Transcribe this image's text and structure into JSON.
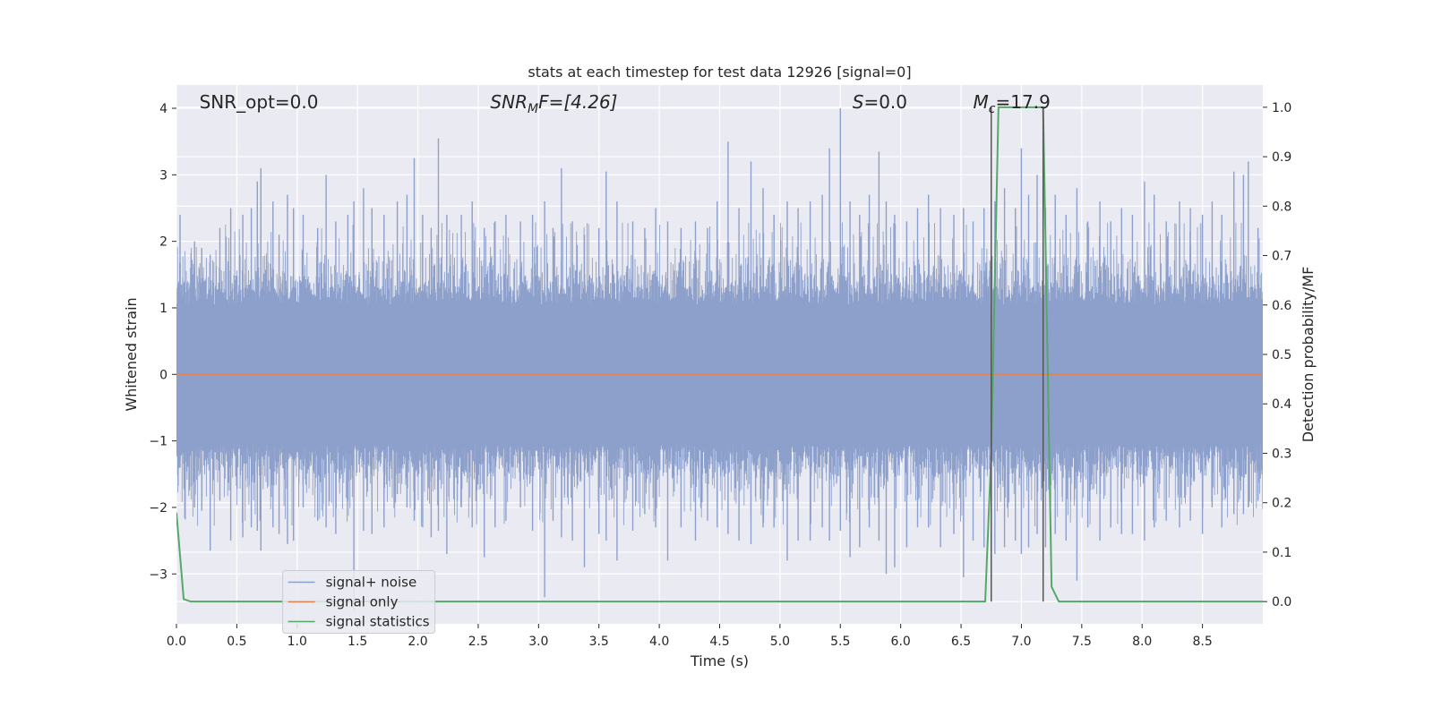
{
  "chart_data": {
    "type": "line",
    "title": "stats at each timestep for test data 12926 [signal=0]",
    "xlabel": "Time (s)",
    "ylabel_left": "Whitened strain",
    "ylabel_right": "Detection probability/MF",
    "xlim": [
      0.0,
      9.0
    ],
    "ylim_left": [
      -3.75,
      4.35
    ],
    "ylim_right": [
      -0.045,
      1.045
    ],
    "xticks": [
      0.0,
      0.5,
      1.0,
      1.5,
      2.0,
      2.5,
      3.0,
      3.5,
      4.0,
      4.5,
      5.0,
      5.5,
      6.0,
      6.5,
      7.0,
      7.5,
      8.0,
      8.5
    ],
    "xtick_labels": [
      "0.0",
      "0.5",
      "1.0",
      "1.5",
      "2.0",
      "2.5",
      "3.0",
      "3.5",
      "4.0",
      "4.5",
      "5.0",
      "5.5",
      "6.0",
      "6.5",
      "7.0",
      "7.5",
      "8.0",
      "8.5"
    ],
    "yticks_left": [
      -3,
      -2,
      -1,
      0,
      1,
      2,
      3,
      4
    ],
    "ytick_labels_left": [
      "−3",
      "−2",
      "−1",
      "0",
      "1",
      "2",
      "3",
      "4"
    ],
    "yticks_right": [
      0.0,
      0.1,
      0.2,
      0.3,
      0.4,
      0.5,
      0.6,
      0.7,
      0.8,
      0.9,
      1.0
    ],
    "ytick_labels_right": [
      "0.0",
      "0.1",
      "0.2",
      "0.3",
      "0.4",
      "0.5",
      "0.6",
      "0.7",
      "0.8",
      "0.9",
      "1.0"
    ],
    "grid": true,
    "legend_position": "lower-left",
    "annotations": {
      "snr_opt": "SNR_opt=0.0",
      "snr_mf_main": "SNR",
      "snr_mf_sub": "M",
      "snr_mf_rest": "F=[4.26]",
      "s_main": "S",
      "s_rest": "=0.0",
      "mc_main": "M",
      "mc_sub": "c",
      "mc_rest": "=17.9"
    },
    "series": [
      {
        "name": "signal+ noise",
        "axis": "left",
        "color": "#8da0cb",
        "envelope_peaks": [
          [
            0.03,
            2.4,
            -1.4
          ],
          [
            0.15,
            2.0,
            -2.0
          ],
          [
            0.21,
            1.9,
            -2.05
          ],
          [
            0.28,
            1.8,
            -2.65
          ],
          [
            0.36,
            2.2,
            -1.9
          ],
          [
            0.45,
            2.5,
            -2.5
          ],
          [
            0.55,
            2.4,
            -2.45
          ],
          [
            0.62,
            2.5,
            -2.3
          ],
          [
            0.67,
            2.9,
            -2.35
          ],
          [
            0.7,
            3.1,
            -2.65
          ],
          [
            0.8,
            2.6,
            -2.3
          ],
          [
            0.85,
            2.1,
            -2.4
          ],
          [
            0.92,
            2.7,
            -2.55
          ],
          [
            0.97,
            2.5,
            -2.5
          ],
          [
            1.05,
            2.4,
            -2.0
          ],
          [
            1.17,
            2.2,
            -2.2
          ],
          [
            1.24,
            3.0,
            -2.3
          ],
          [
            1.32,
            2.3,
            -2.4
          ],
          [
            1.42,
            2.4,
            -1.9
          ],
          [
            1.47,
            2.6,
            -3.55
          ],
          [
            1.55,
            2.8,
            -2.35
          ],
          [
            1.62,
            2.5,
            -2.4
          ],
          [
            1.72,
            2.4,
            -2.3
          ],
          [
            1.83,
            2.6,
            -1.8
          ],
          [
            1.91,
            2.7,
            -2.0
          ],
          [
            1.97,
            3.25,
            -2.2
          ],
          [
            2.04,
            2.4,
            -2.3
          ],
          [
            2.11,
            2.2,
            -2.45
          ],
          [
            2.17,
            3.55,
            -2.35
          ],
          [
            2.24,
            2.4,
            -2.7
          ],
          [
            2.36,
            2.4,
            -2.0
          ],
          [
            2.45,
            2.6,
            -2.3
          ],
          [
            2.55,
            2.2,
            -2.75
          ],
          [
            2.64,
            2.3,
            -2.3
          ],
          [
            2.73,
            2.4,
            -2.2
          ],
          [
            2.85,
            2.3,
            -2.0
          ],
          [
            2.95,
            2.4,
            -2.35
          ],
          [
            3.05,
            2.6,
            -3.35
          ],
          [
            3.12,
            2.2,
            -2.2
          ],
          [
            3.19,
            3.1,
            -2.45
          ],
          [
            3.28,
            2.3,
            -2.5
          ],
          [
            3.38,
            2.1,
            -2.9
          ],
          [
            3.5,
            2.2,
            -2.4
          ],
          [
            3.56,
            3.05,
            -2.5
          ],
          [
            3.65,
            2.6,
            -2.8
          ],
          [
            3.78,
            2.3,
            -2.35
          ],
          [
            3.88,
            2.2,
            -2.1
          ],
          [
            3.97,
            2.5,
            -2.3
          ],
          [
            4.07,
            2.3,
            -2.8
          ],
          [
            4.18,
            2.2,
            -2.3
          ],
          [
            4.3,
            2.3,
            -2.5
          ],
          [
            4.4,
            2.2,
            -2.2
          ],
          [
            4.48,
            2.6,
            -2.3
          ],
          [
            4.57,
            3.5,
            -2.4
          ],
          [
            4.66,
            2.5,
            -2.5
          ],
          [
            4.76,
            3.2,
            -2.55
          ],
          [
            4.86,
            2.8,
            -2.3
          ],
          [
            4.95,
            2.4,
            -2.3
          ],
          [
            5.06,
            2.6,
            -2.8
          ],
          [
            5.15,
            2.5,
            -2.5
          ],
          [
            5.25,
            2.6,
            -2.5
          ],
          [
            5.35,
            2.7,
            -2.3
          ],
          [
            5.41,
            3.4,
            -2.5
          ],
          [
            5.5,
            4.0,
            -2.35
          ],
          [
            5.58,
            2.6,
            -2.75
          ],
          [
            5.66,
            2.4,
            -2.6
          ],
          [
            5.74,
            2.7,
            -2.3
          ],
          [
            5.82,
            3.35,
            -2.5
          ],
          [
            5.88,
            2.6,
            -3.0
          ],
          [
            5.95,
            2.4,
            -2.9
          ],
          [
            6.05,
            2.3,
            -2.6
          ],
          [
            6.14,
            2.5,
            -2.3
          ],
          [
            6.23,
            2.7,
            -2.3
          ],
          [
            6.33,
            2.5,
            -2.6
          ],
          [
            6.44,
            2.4,
            -2.4
          ],
          [
            6.52,
            2.5,
            -3.05
          ],
          [
            6.6,
            2.3,
            -2.5
          ],
          [
            6.69,
            2.5,
            -2.6
          ],
          [
            6.78,
            2.6,
            -2.7
          ],
          [
            6.86,
            2.8,
            -2.6
          ],
          [
            6.95,
            2.5,
            -2.5
          ],
          [
            7.0,
            3.4,
            -2.7
          ],
          [
            7.06,
            2.7,
            -2.6
          ],
          [
            7.13,
            3.0,
            -2.4
          ],
          [
            7.2,
            2.5,
            -2.6
          ],
          [
            7.28,
            2.7,
            -2.4
          ],
          [
            7.37,
            2.4,
            -2.5
          ],
          [
            7.46,
            2.8,
            -3.1
          ],
          [
            7.55,
            2.3,
            -2.3
          ],
          [
            7.65,
            2.6,
            -2.5
          ],
          [
            7.74,
            2.3,
            -2.3
          ],
          [
            7.83,
            2.5,
            -2.4
          ],
          [
            7.92,
            2.4,
            -2.4
          ],
          [
            8.02,
            2.9,
            -2.5
          ],
          [
            8.1,
            2.7,
            -2.3
          ],
          [
            8.2,
            2.3,
            -2.2
          ],
          [
            8.31,
            2.6,
            -2.3
          ],
          [
            8.4,
            2.5,
            -2.2
          ],
          [
            8.5,
            2.4,
            -2.4
          ],
          [
            8.58,
            2.6,
            -2.0
          ],
          [
            8.66,
            2.4,
            -2.3
          ],
          [
            8.76,
            3.05,
            -2.1
          ],
          [
            8.84,
            3.0,
            -2.1
          ],
          [
            8.88,
            3.2,
            -2.0
          ],
          [
            8.96,
            2.2,
            -1.9
          ]
        ]
      },
      {
        "name": "signal only",
        "axis": "left",
        "color": "#dd8452",
        "x": [
          0.0,
          9.0
        ],
        "y": [
          0.0,
          0.0
        ]
      },
      {
        "name": "signal statistics",
        "axis": "right",
        "color": "#55a868",
        "x": [
          0.0,
          0.06,
          0.12,
          0.5,
          1.0,
          2.0,
          3.0,
          4.0,
          5.0,
          6.0,
          6.5,
          6.7,
          6.75,
          6.81,
          7.0,
          7.18,
          7.25,
          7.31,
          7.5,
          8.0,
          8.5,
          9.0
        ],
        "y": [
          0.18,
          0.005,
          0.0,
          0.0,
          0.0,
          0.0,
          0.0,
          0.0,
          0.0,
          0.0,
          0.0,
          0.0,
          0.3,
          1.0,
          1.0,
          1.0,
          0.03,
          0.0,
          0.0,
          0.0,
          0.0,
          0.0
        ]
      }
    ],
    "vertical_markers": {
      "color": "#555555",
      "x": [
        6.75,
        7.18
      ],
      "y_range": [
        0.0,
        1.0
      ]
    }
  }
}
